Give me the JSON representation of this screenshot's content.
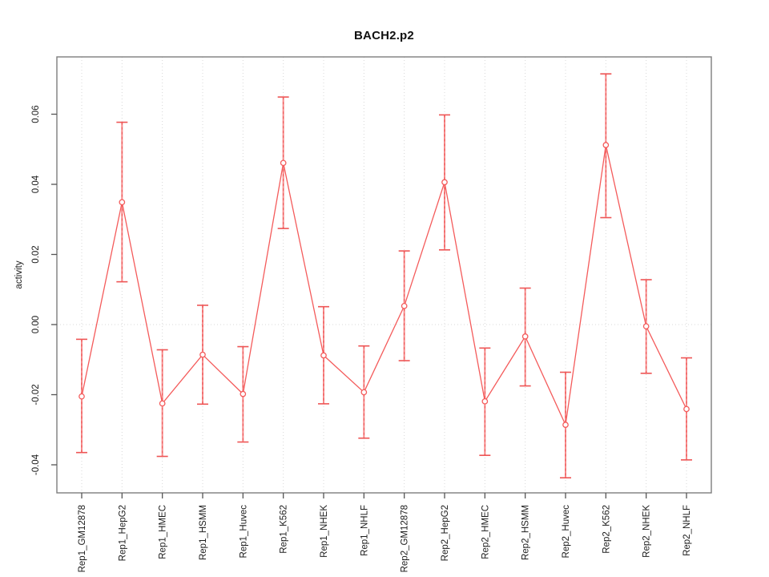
{
  "chart_data": {
    "type": "line",
    "title": "BACH2.p2",
    "xlabel": "",
    "ylabel": "activity",
    "legend": "none",
    "grid": "vertical dotted line at each category; dotted horizontal line at y=0",
    "categories": [
      "Rep1_GM12878",
      "Rep1_HepG2",
      "Rep1_HMEC",
      "Rep1_HSMM",
      "Rep1_Huvec",
      "Rep1_K562",
      "Rep1_NHEK",
      "Rep1_NHLF",
      "Rep2_GM12878",
      "Rep2_HepG2",
      "Rep2_HMEC",
      "Rep2_HSMM",
      "Rep2_Huvec",
      "Rep2_K562",
      "Rep2_NHEK",
      "Rep2_NHLF"
    ],
    "series": [
      {
        "name": "activity",
        "values": [
          -0.0205,
          0.0349,
          -0.0225,
          -0.0086,
          -0.0198,
          0.0461,
          -0.0088,
          -0.0193,
          0.0053,
          0.0406,
          -0.0219,
          -0.0034,
          -0.0286,
          0.0512,
          -0.0005,
          -0.0241
        ],
        "err_hi": [
          -0.0042,
          0.0577,
          -0.0072,
          0.0055,
          -0.0063,
          0.0649,
          0.0051,
          -0.0061,
          0.021,
          0.0598,
          -0.0067,
          0.0104,
          -0.0136,
          0.0715,
          0.0128,
          -0.0095
        ],
        "err_lo": [
          -0.0365,
          0.0122,
          -0.0376,
          -0.0227,
          -0.0335,
          0.0274,
          -0.0226,
          -0.0324,
          -0.0103,
          0.0213,
          -0.0373,
          -0.0175,
          -0.0437,
          0.0305,
          -0.0139,
          -0.0386
        ]
      }
    ],
    "ylim": [
      -0.048,
      0.0764
    ],
    "yticks": [
      -0.04,
      -0.02,
      0,
      0.02,
      0.04,
      0.06
    ],
    "ytick_labels": [
      "-0.04",
      "-0.02",
      "0.00",
      "0.02",
      "0.04",
      "0.06"
    ],
    "colors": {
      "line": "#f45b5b",
      "error_bar": "#f78c8c",
      "error_bar_dash": "#ee5555",
      "marker_fill": "#ffffff",
      "grid": "#d8d8d8",
      "box": "#7d7d7d",
      "tick": "#555555",
      "text": "#1c1c1c"
    }
  }
}
